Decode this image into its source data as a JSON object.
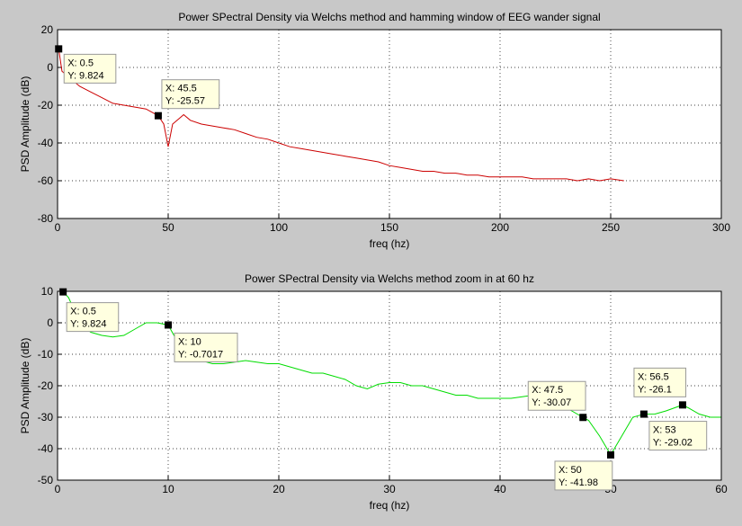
{
  "chart_data": [
    {
      "type": "line",
      "title": "Power SPectral Density via Welchs method and hamming window of EEG wander signal",
      "x_label": "freq (hz)",
      "y_label": "PSD Amplitude (dB)",
      "color": "#cc0000",
      "x": [
        0.5,
        2,
        5,
        10,
        15,
        20,
        25,
        30,
        35,
        40,
        45.5,
        48,
        50,
        52,
        55,
        57,
        60,
        65,
        70,
        75,
        80,
        85,
        90,
        95,
        100,
        105,
        110,
        115,
        120,
        125,
        130,
        135,
        140,
        145,
        150,
        155,
        160,
        165,
        170,
        175,
        180,
        185,
        190,
        195,
        200,
        205,
        210,
        215,
        220,
        225,
        230,
        235,
        240,
        245,
        250,
        256
      ],
      "values": [
        9.824,
        -2,
        -5,
        -10,
        -13,
        -16,
        -19,
        -20,
        -21,
        -22,
        -25.57,
        -30,
        -42,
        -30,
        -27,
        -25,
        -28,
        -30,
        -31,
        -32,
        -33,
        -35,
        -37,
        -38,
        -40,
        -42,
        -43,
        -44,
        -45,
        -46,
        -47,
        -48,
        -49,
        -50,
        -52,
        -53,
        -54,
        -55,
        -55,
        -56,
        -56,
        -57,
        -57,
        -58,
        -58,
        -58,
        -58,
        -59,
        -59,
        -59,
        -59,
        -60,
        -59,
        -60,
        -59,
        -60
      ],
      "xlim": [
        0,
        300
      ],
      "xticks": [
        0,
        50,
        100,
        150,
        200,
        250,
        300
      ],
      "ylim": [
        -80,
        20
      ],
      "yticks": [
        -80,
        -60,
        -40,
        -20,
        0,
        20
      ],
      "grid": true,
      "data_tips": [
        {
          "x": 0.5,
          "y": 9.824,
          "x_text": "X: 0.5",
          "y_text": "Y: 9.824"
        },
        {
          "x": 45.5,
          "y": -25.57,
          "x_text": "X: 45.5",
          "y_text": "Y: -25.57"
        }
      ]
    },
    {
      "type": "line",
      "title": "Power SPectral Density via Welchs method zoom in at 60 hz",
      "x_label": "freq (hz)",
      "y_label": "PSD Amplitude (dB)",
      "color": "#00dd00",
      "x": [
        0.5,
        1,
        2,
        3,
        4,
        5,
        6,
        7,
        8,
        9,
        10,
        11,
        12,
        13,
        14,
        15,
        16,
        17,
        18,
        19,
        20,
        21,
        22,
        23,
        24,
        25,
        26,
        27,
        28,
        29,
        30,
        31,
        32,
        33,
        34,
        35,
        36,
        37,
        38,
        39,
        40,
        41,
        42,
        43,
        44,
        45,
        46,
        47.5,
        48,
        49,
        50,
        51,
        52,
        53,
        54,
        55,
        56.5,
        57,
        58,
        59,
        60
      ],
      "values": [
        9.824,
        8,
        0,
        -3,
        -4,
        -4.5,
        -4,
        -2,
        0,
        0,
        -0.7017,
        -7,
        -11,
        -12,
        -13,
        -13,
        -12.5,
        -12,
        -12.5,
        -13,
        -13,
        -14,
        -15,
        -16,
        -16,
        -17,
        -18,
        -20,
        -21,
        -19.5,
        -19,
        -19,
        -20,
        -20,
        -21,
        -22,
        -23,
        -23,
        -24,
        -24,
        -24,
        -24,
        -23.5,
        -23,
        -24,
        -26,
        -27,
        -30.07,
        -31,
        -36,
        -41.98,
        -36,
        -30,
        -29.02,
        -29,
        -28,
        -26.1,
        -27,
        -29,
        -30,
        -30
      ],
      "xlim": [
        0,
        60
      ],
      "xticks": [
        0,
        10,
        20,
        30,
        40,
        50,
        60
      ],
      "ylim": [
        -50,
        10
      ],
      "yticks": [
        -50,
        -40,
        -30,
        -20,
        -10,
        0,
        10
      ],
      "grid": true,
      "data_tips": [
        {
          "x": 0.5,
          "y": 9.824,
          "x_text": "X: 0.5",
          "y_text": "Y: 9.824"
        },
        {
          "x": 10,
          "y": -0.7017,
          "x_text": "X: 10",
          "y_text": "Y: -0.7017"
        },
        {
          "x": 47.5,
          "y": -30.07,
          "x_text": "X: 47.5",
          "y_text": "Y: -30.07"
        },
        {
          "x": 50,
          "y": -41.98,
          "x_text": "X: 50",
          "y_text": "Y: -41.98"
        },
        {
          "x": 53,
          "y": -29.02,
          "x_text": "X: 53",
          "y_text": "Y: -29.02"
        },
        {
          "x": 56.5,
          "y": -26.1,
          "x_text": "X: 56.5",
          "y_text": "Y: -26.1"
        }
      ]
    }
  ]
}
